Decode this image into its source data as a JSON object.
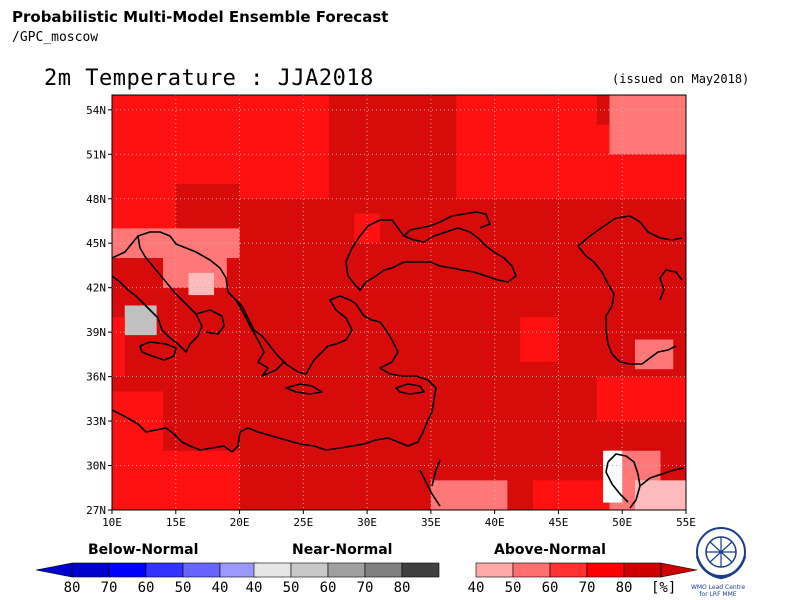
{
  "header": {
    "title": "Probabilistic Multi-Model Ensemble Forecast",
    "source": "/GPC_moscow",
    "variable_title": "2m Temperature : JJA2018",
    "issued": "(issued on May2018)"
  },
  "map": {
    "lon_range": [
      10,
      55
    ],
    "lat_range": [
      27,
      55
    ],
    "x_ticks": [
      "10E",
      "15E",
      "20E",
      "25E",
      "30E",
      "35E",
      "40E",
      "45E",
      "50E",
      "55E"
    ],
    "y_ticks": [
      "54N",
      "51N",
      "48N",
      "45N",
      "42N",
      "39N",
      "36N",
      "33N",
      "30N",
      "27N"
    ],
    "grid": true,
    "background_category": "above-70",
    "grid_cells": [
      {
        "lon": [
          10,
          15
        ],
        "lat": [
          45,
          55
        ],
        "cat": "above-60"
      },
      {
        "lon": [
          15,
          20
        ],
        "lat": [
          49,
          55
        ],
        "cat": "above-60"
      },
      {
        "lon": [
          20,
          27
        ],
        "lat": [
          48,
          55
        ],
        "cat": "above-60"
      },
      {
        "lon": [
          37,
          45
        ],
        "lat": [
          48,
          55
        ],
        "cat": "above-60"
      },
      {
        "lon": [
          45,
          48
        ],
        "lat": [
          48,
          55
        ],
        "cat": "above-60"
      },
      {
        "lon": [
          48,
          55
        ],
        "lat": [
          48,
          53
        ],
        "cat": "above-60"
      },
      {
        "lon": [
          49,
          55
        ],
        "lat": [
          51,
          55
        ],
        "cat": "above-50"
      },
      {
        "lon": [
          10,
          20
        ],
        "lat": [
          44,
          46
        ],
        "cat": "above-50"
      },
      {
        "lon": [
          14,
          19
        ],
        "lat": [
          42,
          44
        ],
        "cat": "above-50"
      },
      {
        "lon": [
          16,
          18
        ],
        "lat": [
          41.5,
          43
        ],
        "cat": "above-40"
      },
      {
        "lon": [
          11,
          13.5
        ],
        "lat": [
          38.8,
          40.8
        ],
        "cat": "near-60"
      },
      {
        "lon": [
          10,
          11
        ],
        "lat": [
          36,
          40
        ],
        "cat": "above-60"
      },
      {
        "lon": [
          10,
          14
        ],
        "lat": [
          27,
          35
        ],
        "cat": "above-60"
      },
      {
        "lon": [
          14,
          20
        ],
        "lat": [
          27,
          31
        ],
        "cat": "above-60"
      },
      {
        "lon": [
          35,
          41
        ],
        "lat": [
          27,
          29
        ],
        "cat": "above-50"
      },
      {
        "lon": [
          43,
          50
        ],
        "lat": [
          27,
          29
        ],
        "cat": "above-60"
      },
      {
        "lon": [
          49,
          53
        ],
        "lat": [
          27,
          31
        ],
        "cat": "above-50"
      },
      {
        "lon": [
          51,
          55
        ],
        "lat": [
          27,
          29
        ],
        "cat": "above-40"
      },
      {
        "lon": [
          48.5,
          50
        ],
        "lat": [
          27.5,
          31
        ],
        "cat": "above-30"
      },
      {
        "lon": [
          51,
          54
        ],
        "lat": [
          36.5,
          38.5
        ],
        "cat": "above-50"
      },
      {
        "lon": [
          48,
          55
        ],
        "lat": [
          33,
          36
        ],
        "cat": "above-60"
      },
      {
        "lon": [
          42,
          45
        ],
        "lat": [
          37,
          40
        ],
        "cat": "above-60"
      },
      {
        "lon": [
          29,
          31
        ],
        "lat": [
          45,
          47
        ],
        "cat": "above-60"
      }
    ]
  },
  "legend": {
    "below": {
      "title": "Below-Normal",
      "labels": [
        "80",
        "70",
        "60",
        "50",
        "40"
      ],
      "colors": [
        "#0000cc",
        "#0000ff",
        "#3333ff",
        "#6666ff",
        "#9999ff"
      ]
    },
    "near": {
      "title": "Near-Normal",
      "labels": [
        "40",
        "50",
        "60",
        "70",
        "80"
      ],
      "colors": [
        "#e6e6e6",
        "#c8c8c8",
        "#a0a0a0",
        "#808080",
        "#404040"
      ]
    },
    "above": {
      "title": "Above-Normal",
      "labels": [
        "40",
        "50",
        "60",
        "70",
        "80"
      ],
      "colors": [
        "#ffaaaa",
        "#ff6e6e",
        "#ff3232",
        "#ff0000",
        "#cc0000"
      ]
    },
    "unit": "[%]"
  },
  "category_colors": {
    "above-30": "#ffffff",
    "above-40": "#ffbbbb",
    "above-50": "#ff7777",
    "above-60": "#ff1111",
    "above-70": "#d80b0b",
    "above-80": "#bb0000",
    "near-60": "#c0c0c0"
  },
  "logo": {
    "text": "WMO Lead Centre for LRF MME"
  }
}
